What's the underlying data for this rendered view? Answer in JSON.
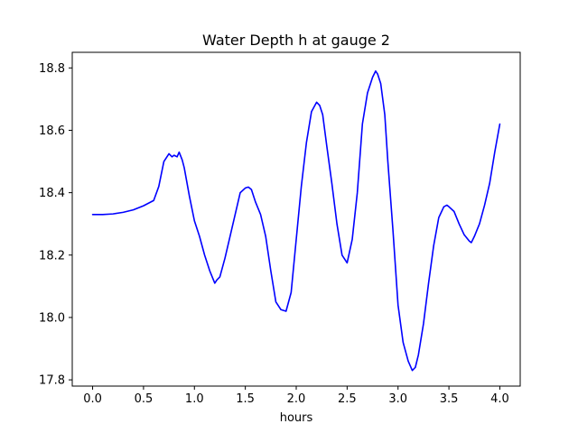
{
  "chart_data": {
    "type": "line",
    "title": "Water Depth h at gauge 2",
    "xlabel": "hours",
    "ylabel": "",
    "xlim": [
      -0.2,
      4.2
    ],
    "ylim": [
      17.78,
      18.85
    ],
    "grid": false,
    "x_ticks": [
      0.0,
      0.5,
      1.0,
      1.5,
      2.0,
      2.5,
      3.0,
      3.5,
      4.0
    ],
    "x_tick_labels": [
      "0.0",
      "0.5",
      "1.0",
      "1.5",
      "2.0",
      "2.5",
      "3.0",
      "3.5",
      "4.0"
    ],
    "y_ticks": [
      17.8,
      18.0,
      18.2,
      18.4,
      18.6,
      18.8
    ],
    "y_tick_labels": [
      "17.8",
      "18.0",
      "18.2",
      "18.4",
      "18.6",
      "18.8"
    ],
    "series": [
      {
        "color": "#0000ff",
        "x": [
          0.0,
          0.1,
          0.2,
          0.3,
          0.4,
          0.5,
          0.6,
          0.65,
          0.7,
          0.75,
          0.78,
          0.8,
          0.83,
          0.85,
          0.88,
          0.9,
          0.95,
          1.0,
          1.05,
          1.1,
          1.15,
          1.2,
          1.22,
          1.25,
          1.3,
          1.35,
          1.4,
          1.45,
          1.5,
          1.53,
          1.56,
          1.6,
          1.65,
          1.7,
          1.75,
          1.8,
          1.85,
          1.9,
          1.95,
          2.0,
          2.05,
          2.1,
          2.15,
          2.2,
          2.23,
          2.26,
          2.3,
          2.35,
          2.4,
          2.45,
          2.5,
          2.55,
          2.6,
          2.65,
          2.7,
          2.75,
          2.78,
          2.8,
          2.83,
          2.87,
          2.9,
          2.95,
          3.0,
          3.05,
          3.1,
          3.14,
          3.17,
          3.2,
          3.25,
          3.3,
          3.35,
          3.4,
          3.45,
          3.48,
          3.5,
          3.55,
          3.6,
          3.65,
          3.7,
          3.72,
          3.75,
          3.8,
          3.85,
          3.9,
          3.95,
          4.0
        ],
        "y": [
          18.33,
          18.33,
          18.332,
          18.337,
          18.345,
          18.358,
          18.375,
          18.42,
          18.5,
          18.525,
          18.515,
          18.52,
          18.515,
          18.53,
          18.505,
          18.48,
          18.39,
          18.31,
          18.26,
          18.2,
          18.15,
          18.11,
          18.12,
          18.13,
          18.19,
          18.26,
          18.33,
          18.4,
          18.415,
          18.418,
          18.41,
          18.37,
          18.33,
          18.26,
          18.15,
          18.05,
          18.025,
          18.02,
          18.08,
          18.25,
          18.42,
          18.56,
          18.66,
          18.69,
          18.68,
          18.65,
          18.55,
          18.43,
          18.3,
          18.2,
          18.175,
          18.25,
          18.4,
          18.62,
          18.72,
          18.77,
          18.79,
          18.78,
          18.75,
          18.65,
          18.5,
          18.28,
          18.04,
          17.92,
          17.86,
          17.83,
          17.84,
          17.88,
          17.98,
          18.11,
          18.23,
          18.32,
          18.355,
          18.36,
          18.355,
          18.34,
          18.3,
          18.265,
          18.245,
          18.24,
          18.26,
          18.3,
          18.36,
          18.43,
          18.53,
          18.62
        ]
      }
    ]
  }
}
